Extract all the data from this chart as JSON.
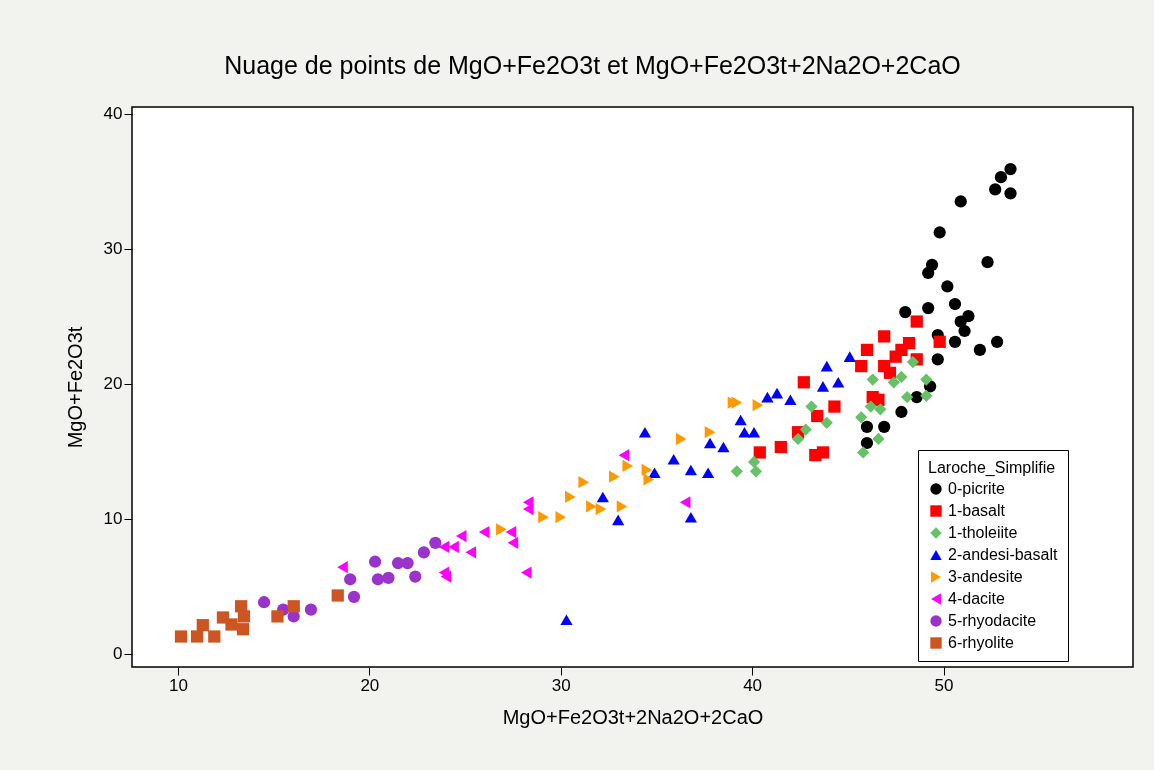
{
  "chart_data": {
    "type": "scatter",
    "title": "Nuage de points de MgO+Fe2O3t et MgO+Fe2O3t+2Na2O+2CaO",
    "xlabel": "MgO+Fe2O3t+2Na2O+2CaO",
    "ylabel": "MgO+Fe2O3t",
    "legend_title": "Laroche_Simplifie",
    "legend": "bottom right",
    "grid": false,
    "xlim": [
      7.6,
      59.9
    ],
    "xticks": [
      10,
      20,
      30,
      40,
      50
    ],
    "ylim": [
      -1,
      40.5
    ],
    "yticks": [
      0,
      10,
      20,
      30,
      40
    ],
    "series": [
      {
        "name": "0-picrite",
        "color": "#000000",
        "marker": "circle",
        "x": [
          53.5,
          53.0,
          52.7,
          53.5,
          50.9,
          49.8,
          52.3,
          49.4,
          49.2,
          50.2,
          50.6,
          48.0,
          49.2,
          51.3,
          50.9,
          51.1,
          49.7,
          50.6,
          51.9,
          52.8,
          49.7,
          48.6,
          47.8,
          46.9,
          46.0,
          46.0,
          49.3
        ],
        "values": [
          35.9,
          35.3,
          34.4,
          34.1,
          33.5,
          31.2,
          29.0,
          28.8,
          28.2,
          27.2,
          25.9,
          25.3,
          25.6,
          25.0,
          24.6,
          23.9,
          23.6,
          23.1,
          22.5,
          23.1,
          21.8,
          19.0,
          17.9,
          16.8,
          16.8,
          15.6,
          19.8
        ]
      },
      {
        "name": "1-basalt",
        "color": "#ff0000",
        "marker": "square",
        "x": [
          42.7,
          43.7,
          41.5,
          44.3,
          46.3,
          48.6,
          49.8,
          46.0,
          46.9,
          47.8,
          48.6,
          45.7,
          46.9,
          46.6,
          40.4,
          42.4,
          43.4,
          43.3,
          47.5,
          48.2,
          47.2
        ],
        "values": [
          20.1,
          14.9,
          15.3,
          18.3,
          19.0,
          24.6,
          23.1,
          22.5,
          23.5,
          22.5,
          21.8,
          21.3,
          21.3,
          18.8,
          14.9,
          16.4,
          17.6,
          14.7,
          22.0,
          23.0,
          20.8
        ]
      },
      {
        "name": "1-tholeiite",
        "color": "#66c266",
        "marker": "diamond",
        "x": [
          39.2,
          40.2,
          40.1,
          43.1,
          42.4,
          43.9,
          42.8,
          45.8,
          45.7,
          46.2,
          46.3,
          47.4,
          48.4,
          48.1,
          47.8,
          46.6,
          49.1,
          49.1,
          46.7
        ],
        "values": [
          13.5,
          13.5,
          14.2,
          18.3,
          15.9,
          17.1,
          16.6,
          14.9,
          17.5,
          18.3,
          20.3,
          20.1,
          21.6,
          19.0,
          20.5,
          15.9,
          20.3,
          19.1,
          18.1
        ]
      },
      {
        "name": "2-andesi-basalt",
        "color": "#0000ff",
        "marker": "triangle",
        "x": [
          30.3,
          33.0,
          36.8,
          34.4,
          32.2,
          35.9,
          36.8,
          37.7,
          38.5,
          39.4,
          40.1,
          40.8,
          34.9,
          41.3,
          43.9,
          45.1,
          44.5,
          37.8,
          39.6,
          42.0,
          43.7
        ],
        "values": [
          2.5,
          9.9,
          10.1,
          16.4,
          11.6,
          14.4,
          13.6,
          13.4,
          15.3,
          17.3,
          16.4,
          19.0,
          13.4,
          19.3,
          21.3,
          22.0,
          20.1,
          15.6,
          16.4,
          18.8,
          19.8
        ]
      },
      {
        "name": "3-andesite",
        "color": "#ff9900",
        "marker": "triangle-right",
        "x": [
          26.9,
          29.1,
          30.0,
          30.5,
          31.2,
          31.6,
          32.1,
          32.8,
          33.2,
          33.5,
          34.5,
          34.6,
          36.3,
          37.8,
          39.0,
          40.3,
          39.2
        ],
        "values": [
          9.2,
          10.1,
          10.1,
          11.6,
          12.7,
          10.9,
          10.7,
          13.1,
          10.9,
          13.9,
          13.6,
          12.9,
          15.9,
          16.4,
          18.6,
          18.4,
          18.6
        ]
      },
      {
        "name": "4-dacite",
        "color": "#ff00ff",
        "marker": "triangle-left",
        "x": [
          18.6,
          23.9,
          24.0,
          23.9,
          24.4,
          24.8,
          25.3,
          26.0,
          27.4,
          27.5,
          28.3,
          28.3,
          28.2,
          33.3,
          36.5
        ],
        "values": [
          6.4,
          7.9,
          5.7,
          6.0,
          7.9,
          8.7,
          7.5,
          9.0,
          9.0,
          8.2,
          10.7,
          11.2,
          6.0,
          14.7,
          11.2
        ]
      },
      {
        "name": "5-rhyodacite",
        "color": "#9933cc",
        "marker": "circle",
        "x": [
          14.5,
          15.5,
          16.05,
          16.95,
          19.0,
          19.2,
          20.3,
          20.45,
          21.0,
          21.5,
          22.0,
          22.4,
          22.85,
          23.45
        ],
        "values": [
          3.8,
          3.25,
          2.75,
          3.25,
          5.5,
          4.2,
          6.8,
          5.5,
          5.6,
          6.7,
          6.7,
          5.7,
          7.5,
          8.2
        ]
      },
      {
        "name": "6-rhyolite",
        "color": "#cc5522",
        "marker": "square",
        "x": [
          10.16,
          11.0,
          11.3,
          11.9,
          12.35,
          12.8,
          13.3,
          13.4,
          13.45,
          15.2,
          16.05,
          18.35
        ],
        "values": [
          1.26,
          1.26,
          2.1,
          1.26,
          2.67,
          2.15,
          3.5,
          1.8,
          2.75,
          2.75,
          3.5,
          4.3
        ]
      }
    ]
  }
}
